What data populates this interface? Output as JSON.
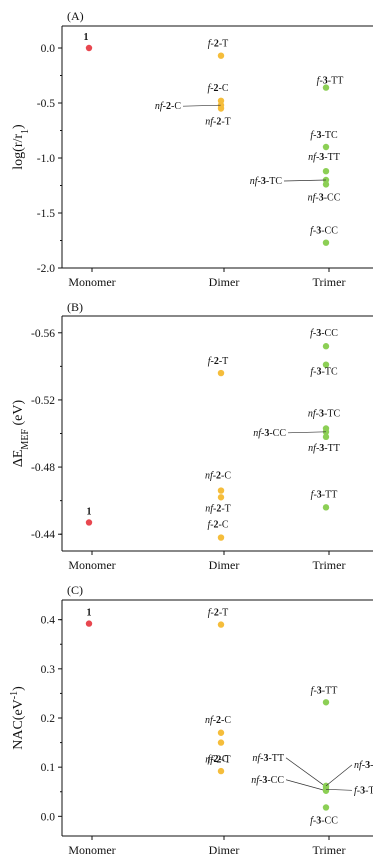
{
  "colors": {
    "monomer": "#e8474f",
    "dimer": "#f5bd3b",
    "trimer": "#8ccf55",
    "axis": "#111111"
  },
  "chart_data": [
    {
      "type": "scatter",
      "panel_label": "(A)",
      "ylabel": "log(r/r",
      "ylabel_sub": "1",
      "ylabel_end": ")",
      "categories": [
        "Monomer",
        "Dimer",
        "Trimer"
      ],
      "ylim": [
        -2.0,
        0.2
      ],
      "yticks": [
        0.0,
        -0.5,
        -1.0,
        -1.5,
        -2.0
      ],
      "ytick_labels": [
        "0.0",
        "-0.5",
        "-1.0",
        "-1.5",
        "-2.0"
      ],
      "points": [
        {
          "category": "Monomer",
          "y": 0.0,
          "pre": "",
          "num": "1",
          "suf": ""
        },
        {
          "category": "Dimer",
          "y": -0.07,
          "pre": "f-",
          "num": "2",
          "suf": "-T"
        },
        {
          "category": "Dimer",
          "y": -0.48,
          "pre": "f-",
          "num": "2",
          "suf": "-C"
        },
        {
          "category": "Dimer",
          "y": -0.52,
          "pre": "nf-",
          "num": "2",
          "suf": "-C"
        },
        {
          "category": "Dimer",
          "y": -0.55,
          "pre": "nf-",
          "num": "2",
          "suf": "-T"
        },
        {
          "category": "Trimer",
          "y": -0.36,
          "pre": "f-",
          "num": "3",
          "suf": "-TT"
        },
        {
          "category": "Trimer",
          "y": -0.9,
          "pre": "f-",
          "num": "3",
          "suf": "-TC"
        },
        {
          "category": "Trimer",
          "y": -1.12,
          "pre": "nf-",
          "num": "3",
          "suf": "-TT"
        },
        {
          "category": "Trimer",
          "y": -1.2,
          "pre": "nf-",
          "num": "3",
          "suf": "-TC"
        },
        {
          "category": "Trimer",
          "y": -1.24,
          "pre": "nf-",
          "num": "3",
          "suf": "-CC"
        },
        {
          "category": "Trimer",
          "y": -1.77,
          "pre": "f-",
          "num": "3",
          "suf": "-CC"
        }
      ]
    },
    {
      "type": "scatter",
      "panel_label": "(B)",
      "ylabel": "ΔE",
      "ylabel_sub": "MEF",
      "ylabel_end": " (eV)",
      "categories": [
        "Monomer",
        "Dimer",
        "Trimer"
      ],
      "ylim": [
        -0.43,
        -0.57
      ],
      "yticks": [
        -0.56,
        -0.52,
        -0.48,
        -0.44
      ],
      "ytick_labels": [
        "-0.56",
        "-0.52",
        "-0.48",
        "-0.44"
      ],
      "points": [
        {
          "category": "Monomer",
          "y": -0.447,
          "pre": "",
          "num": "1",
          "suf": ""
        },
        {
          "category": "Dimer",
          "y": -0.536,
          "pre": "f-",
          "num": "2",
          "suf": "-T"
        },
        {
          "category": "Dimer",
          "y": -0.466,
          "pre": "nf-",
          "num": "2",
          "suf": "-C"
        },
        {
          "category": "Dimer",
          "y": -0.462,
          "pre": "nf-",
          "num": "2",
          "suf": "-T"
        },
        {
          "category": "Dimer",
          "y": -0.438,
          "pre": "f-",
          "num": "2",
          "suf": "-C"
        },
        {
          "category": "Trimer",
          "y": -0.552,
          "pre": "f-",
          "num": "3",
          "suf": "-CC"
        },
        {
          "category": "Trimer",
          "y": -0.541,
          "pre": "f-",
          "num": "3",
          "suf": "-TC"
        },
        {
          "category": "Trimer",
          "y": -0.503,
          "pre": "nf-",
          "num": "3",
          "suf": "-TC"
        },
        {
          "category": "Trimer",
          "y": -0.501,
          "pre": "nf-",
          "num": "3",
          "suf": "-CC"
        },
        {
          "category": "Trimer",
          "y": -0.498,
          "pre": "nf-",
          "num": "3",
          "suf": "-TT"
        },
        {
          "category": "Trimer",
          "y": -0.456,
          "pre": "f-",
          "num": "3",
          "suf": "-TT"
        }
      ]
    },
    {
      "type": "scatter",
      "panel_label": "(C)",
      "ylabel": "NAC(eV",
      "ylabel_sup": "-1",
      "ylabel_end": ")",
      "categories": [
        "Monomer",
        "Dimer",
        "Trimer"
      ],
      "ylim": [
        -0.04,
        0.44
      ],
      "yticks": [
        0.0,
        0.1,
        0.2,
        0.3,
        0.4
      ],
      "ytick_labels": [
        "0.0",
        "0.1",
        "0.2",
        "0.3",
        "0.4"
      ],
      "points": [
        {
          "category": "Monomer",
          "y": 0.392,
          "pre": "",
          "num": "1",
          "suf": ""
        },
        {
          "category": "Dimer",
          "y": 0.39,
          "pre": "f-",
          "num": "2",
          "suf": "-T"
        },
        {
          "category": "Dimer",
          "y": 0.17,
          "pre": "nf-",
          "num": "2",
          "suf": "-C"
        },
        {
          "category": "Dimer",
          "y": 0.15,
          "pre": "nf-",
          "num": "2",
          "suf": "-T"
        },
        {
          "category": "Dimer",
          "y": 0.092,
          "pre": "f-",
          "num": "2",
          "suf": "-C"
        },
        {
          "category": "Trimer",
          "y": 0.232,
          "pre": "f-",
          "num": "3",
          "suf": "-TT"
        },
        {
          "category": "Trimer",
          "y": 0.06,
          "pre": "nf-",
          "num": "3",
          "suf": "-TT"
        },
        {
          "category": "Trimer",
          "y": 0.062,
          "pre": "nf-",
          "num": "3",
          "suf": "-TC"
        },
        {
          "category": "Trimer",
          "y": 0.052,
          "pre": "nf-",
          "num": "3",
          "suf": "-CC"
        },
        {
          "category": "Trimer",
          "y": 0.055,
          "pre": "f-",
          "num": "3",
          "suf": "-TC"
        },
        {
          "category": "Trimer",
          "y": 0.018,
          "pre": "f-",
          "num": "3",
          "suf": "-CC"
        }
      ]
    }
  ]
}
